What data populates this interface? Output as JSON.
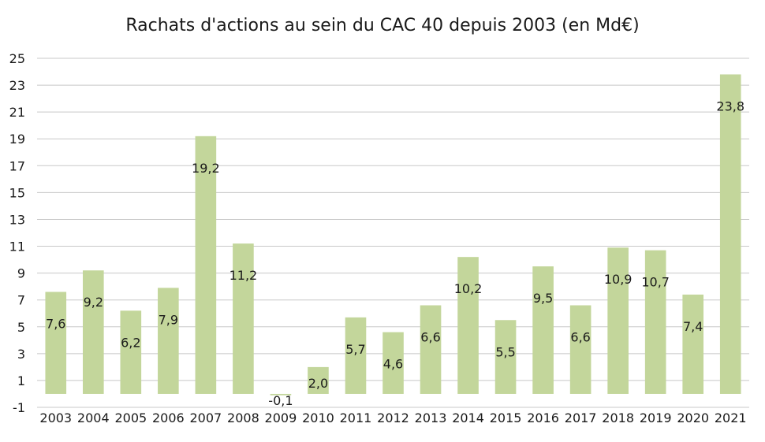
{
  "chart_data": {
    "type": "bar",
    "title": "Rachats d'actions au sein du CAC 40 depuis 2003 (en Md€)",
    "xlabel": "",
    "ylabel": "",
    "categories": [
      "2003",
      "2004",
      "2005",
      "2006",
      "2007",
      "2008",
      "2009",
      "2010",
      "2011",
      "2012",
      "2013",
      "2014",
      "2015",
      "2016",
      "2017",
      "2018",
      "2019",
      "2020",
      "2021"
    ],
    "values": [
      7.6,
      9.2,
      6.2,
      7.9,
      19.2,
      11.2,
      -0.1,
      2.0,
      5.7,
      4.6,
      6.6,
      10.2,
      5.5,
      9.5,
      6.6,
      10.9,
      10.7,
      7.4,
      23.8
    ],
    "data_labels": [
      "7,6",
      "9,2",
      "6,2",
      "7,9",
      "19,2",
      "11,2",
      "-0,1",
      "2,0",
      "5,7",
      "4,6",
      "6,6",
      "10,2",
      "5,5",
      "9,5",
      "6,6",
      "10,9",
      "10,7",
      "7,4",
      "23,8"
    ],
    "yticks": [
      -1,
      1,
      3,
      5,
      7,
      9,
      11,
      13,
      15,
      17,
      19,
      21,
      23,
      25
    ],
    "ylim": [
      -1,
      25
    ],
    "grid": true,
    "legend": "none",
    "bar_color": "#c3d69b",
    "grid_color": "#c8c8c8"
  }
}
